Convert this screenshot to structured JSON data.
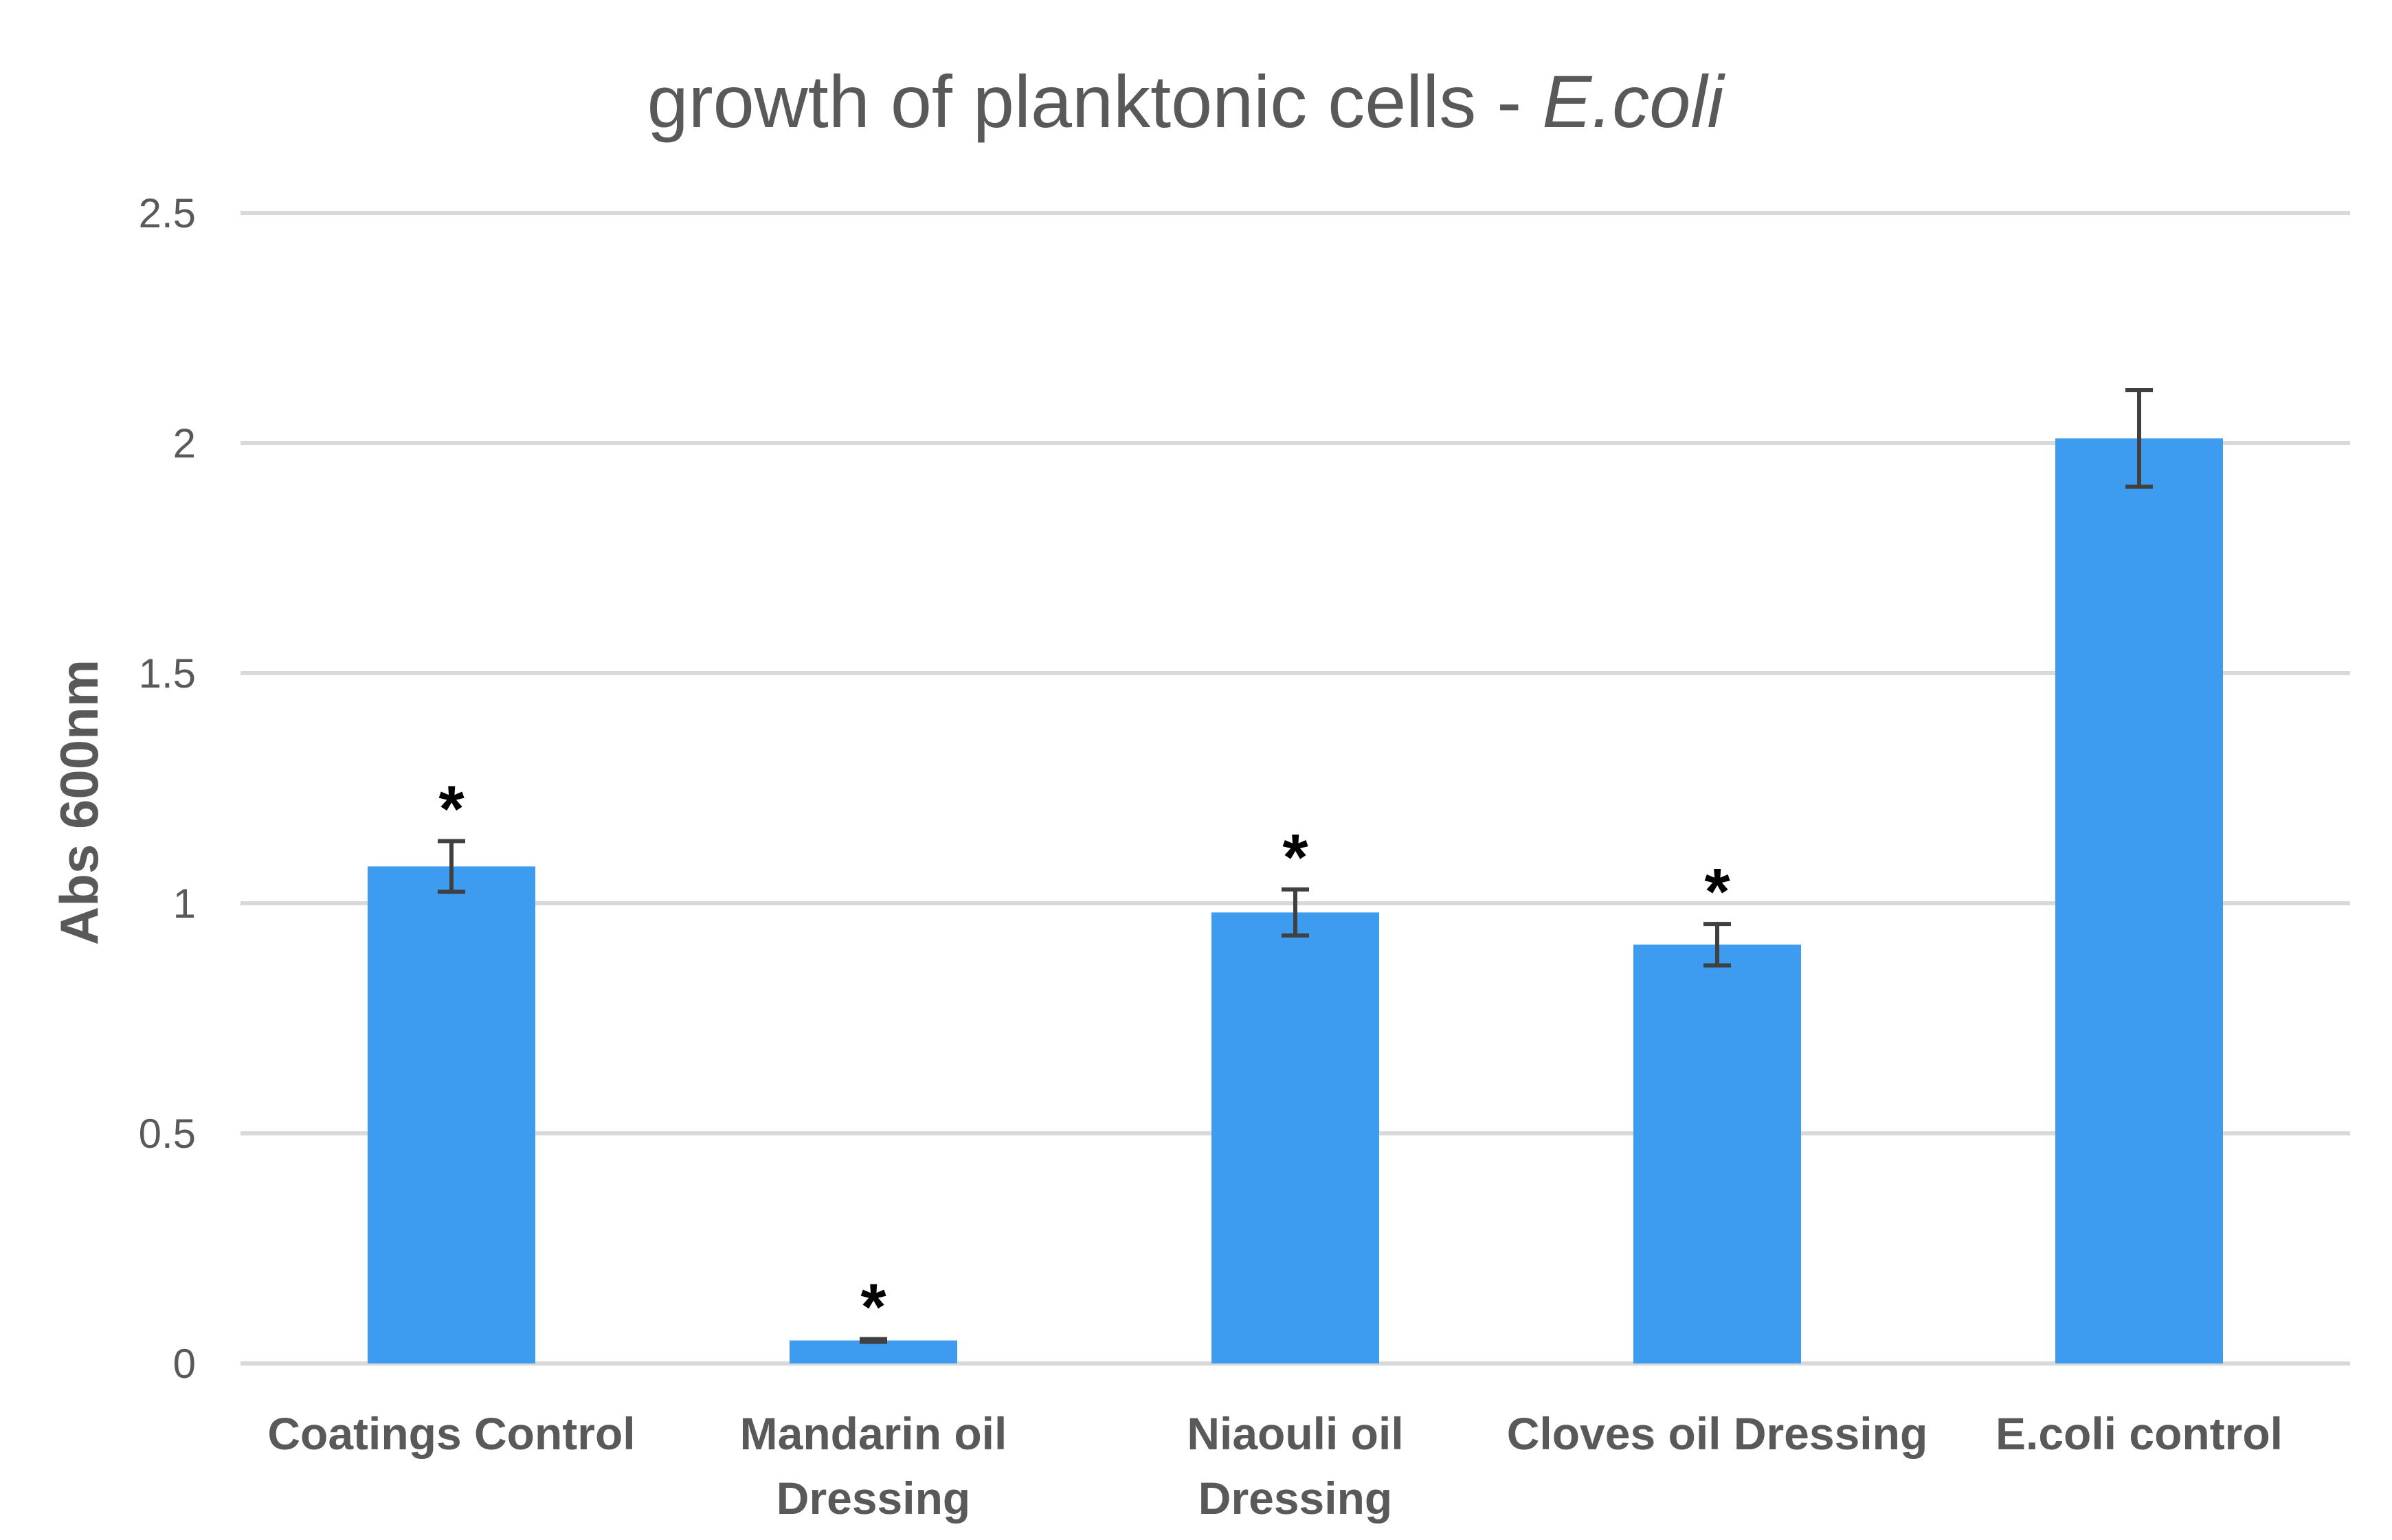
{
  "chart_data": {
    "type": "bar",
    "title": "growth of planktonic cells - ",
    "title_italic": "E.coli",
    "xlabel": "",
    "ylabel": "Abs 600nm",
    "ylim": [
      0,
      2.5
    ],
    "yticks": [
      0,
      0.5,
      1,
      1.5,
      2,
      2.5
    ],
    "ytick_labels": [
      "0",
      "0.5",
      "1",
      "1.5",
      "2",
      "2.5"
    ],
    "grid": true,
    "legend": "none",
    "bar_color": "#3d9bf0",
    "categories": [
      [
        "Coatings Control"
      ],
      [
        "Mandarin oil",
        "Dressing"
      ],
      [
        "Niaouli oil",
        "Dressing"
      ],
      [
        "Cloves oil Dressing"
      ],
      [
        "E.coli control"
      ]
    ],
    "series": [
      {
        "name": "Abs 600nm",
        "values": [
          1.08,
          0.05,
          0.98,
          0.91,
          2.01
        ],
        "errors": [
          0.055,
          0.003,
          0.05,
          0.045,
          0.105
        ]
      }
    ],
    "annotations": [
      "*",
      "*",
      "*",
      "*",
      ""
    ]
  }
}
